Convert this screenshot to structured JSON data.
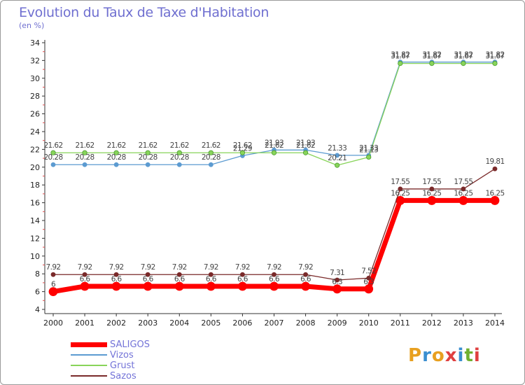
{
  "header": {
    "title": "Evolution du Taux de Taxe d'Habitation",
    "unit": "(en %)"
  },
  "logo": {
    "text": "Proxiti",
    "colors": [
      "#e8a020",
      "#3a8fd0",
      "#e8a020",
      "#e04040",
      "#3a8fd0",
      "#70b030",
      "#e04040"
    ]
  },
  "chart_data": {
    "type": "line",
    "categories": [
      "2000",
      "2001",
      "2002",
      "2003",
      "2004",
      "2005",
      "2006",
      "2007",
      "2008",
      "2009",
      "2010",
      "2011",
      "2012",
      "2013",
      "2014"
    ],
    "ylim": [
      4,
      34
    ],
    "yticks": [
      4,
      6,
      8,
      10,
      12,
      14,
      16,
      18,
      20,
      22,
      24,
      26,
      28,
      30,
      32,
      34
    ],
    "grid": false,
    "legend_position": "bottom-left",
    "series": [
      {
        "name": "SALIGOS",
        "color": "#ff0000",
        "values": [
          6,
          6.6,
          6.6,
          6.6,
          6.6,
          6.6,
          6.6,
          6.6,
          6.6,
          6.3,
          6.3,
          16.25,
          16.25,
          16.25,
          16.25
        ],
        "labels": [
          "6",
          "6.6",
          "6.6",
          "6.6",
          "6.6",
          "6.6",
          "6.6",
          "6.6",
          "6.6",
          "6.3",
          "6.3",
          "16.25",
          "16.25",
          "16.25",
          "16.25"
        ]
      },
      {
        "name": "Vizos",
        "color": "#5c9bd1",
        "values": [
          20.28,
          20.28,
          20.28,
          20.28,
          20.28,
          20.28,
          21.29,
          21.93,
          21.93,
          21.33,
          21.33,
          31.82,
          31.82,
          31.82,
          31.82
        ],
        "labels": [
          "20.28",
          "20.28",
          "20.28",
          "20.28",
          "20.28",
          "20.28",
          "21.29",
          "21.93",
          "21.93",
          "21.33",
          "21.33",
          "31.82",
          "31.82",
          "31.82",
          "31.82"
        ]
      },
      {
        "name": "Grust",
        "color": "#88d45a",
        "values": [
          21.62,
          21.62,
          21.62,
          21.62,
          21.62,
          21.62,
          21.62,
          21.62,
          21.62,
          20.21,
          21.13,
          31.67,
          31.67,
          31.67,
          31.67
        ],
        "labels": [
          "21.62",
          "21.62",
          "21.62",
          "21.62",
          "21.62",
          "21.62",
          "21.62",
          "21.62",
          "21.62",
          "20.21",
          "21.13",
          "31.67",
          "31.67",
          "31.67",
          "31.67"
        ]
      },
      {
        "name": "Sazos",
        "color": "#7a2a2a",
        "values": [
          7.92,
          7.92,
          7.92,
          7.92,
          7.92,
          7.92,
          7.92,
          7.92,
          7.92,
          7.31,
          7.52,
          17.55,
          17.55,
          17.55,
          19.81
        ],
        "labels": [
          "7.92",
          "7.92",
          "7.92",
          "7.92",
          "7.92",
          "7.92",
          "7.92",
          "7.92",
          "7.92",
          "7.31",
          "7.52",
          "17.55",
          "17.55",
          "17.55",
          "19.81"
        ]
      }
    ]
  }
}
